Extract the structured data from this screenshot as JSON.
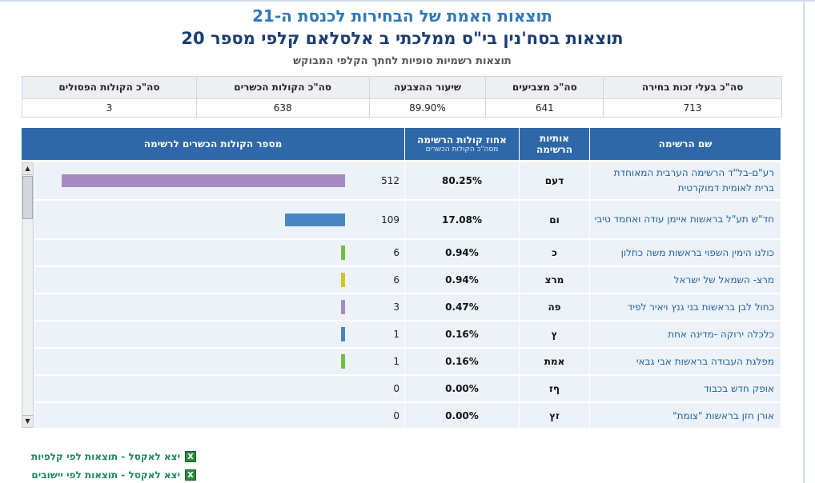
{
  "header": {
    "title": "תוצאות האמת של הבחירות לכנסת ה-21",
    "subtitle": "תוצאות בסח'נין בי\"ס ממלכתי ב אלסלאם קלפי מספר 20",
    "note": "תוצאות רשמיות סופיות לחתך הקלפי המבוקש"
  },
  "summary": [
    {
      "label": "סה\"כ בעלי זכות בחירה",
      "value": "713"
    },
    {
      "label": "סה\"כ מצביעים",
      "value": "641"
    },
    {
      "label": "שיעור ההצבעה",
      "value": "89.90%"
    },
    {
      "label": "סה\"כ הקולות הכשרים",
      "value": "638"
    },
    {
      "label": "סה\"כ הקולות הפסולים",
      "value": "3"
    }
  ],
  "table_header": {
    "name": "שם הרשימה",
    "letters_line1": "אותיות",
    "letters_line2": "הרשימה",
    "pct_line1": "אחוז קולות הרשימה",
    "pct_line2": "מסה\"כ הקולות הכשרים",
    "votes": "מספר הקולות הכשרים לרשימה"
  },
  "rows": [
    {
      "name": "רע\"ם-בל\"ד הרשימה הערבית המאוחדת ברית לאומית דמוקרטית",
      "letters": "דעם",
      "pct": "80.25%",
      "votes": 512,
      "color": "#a68ac4"
    },
    {
      "name": "חד\"ש תע\"ל בראשות איימן עודה ואחמד טיבי",
      "letters": "ום",
      "pct": "17.08%",
      "votes": 109,
      "color": "#4a86c4"
    },
    {
      "name": "כולנו הימין השפוי בראשות משה כחלון",
      "letters": "כ",
      "pct": "0.94%",
      "votes": 6,
      "color": "#6fbd44"
    },
    {
      "name": "מרצ- השמאל של ישראל",
      "letters": "מרצ",
      "pct": "0.94%",
      "votes": 6,
      "color": "#d0c42a"
    },
    {
      "name": "כחול לבן בראשות בני גנץ ויאיר לפיד",
      "letters": "פה",
      "pct": "0.47%",
      "votes": 3,
      "color": "#a68ac4"
    },
    {
      "name": "כלכלה ירוקה -מדינה אחת",
      "letters": "ץ",
      "pct": "0.16%",
      "votes": 1,
      "color": "#4a86c4"
    },
    {
      "name": "מפלגת העבודה בראשות אבי גבאי",
      "letters": "אמת",
      "pct": "0.16%",
      "votes": 1,
      "color": "#6fbd44"
    },
    {
      "name": "אופק חדש בכבוד",
      "letters": "ףז",
      "pct": "0.00%",
      "votes": 0,
      "color": "#4a86c4"
    },
    {
      "name": "אורן חזן בראשות \"צומת\"",
      "letters": "זץ",
      "pct": "0.00%",
      "votes": 0,
      "color": "#4a86c4"
    }
  ],
  "links": [
    {
      "label": "יצא לאקסל - תוצאות לפי קלפיות",
      "icon": "excel-icon"
    },
    {
      "label": "יצא לאקסל - תוצאות לפי יישובים",
      "icon": "excel-icon"
    }
  ]
}
